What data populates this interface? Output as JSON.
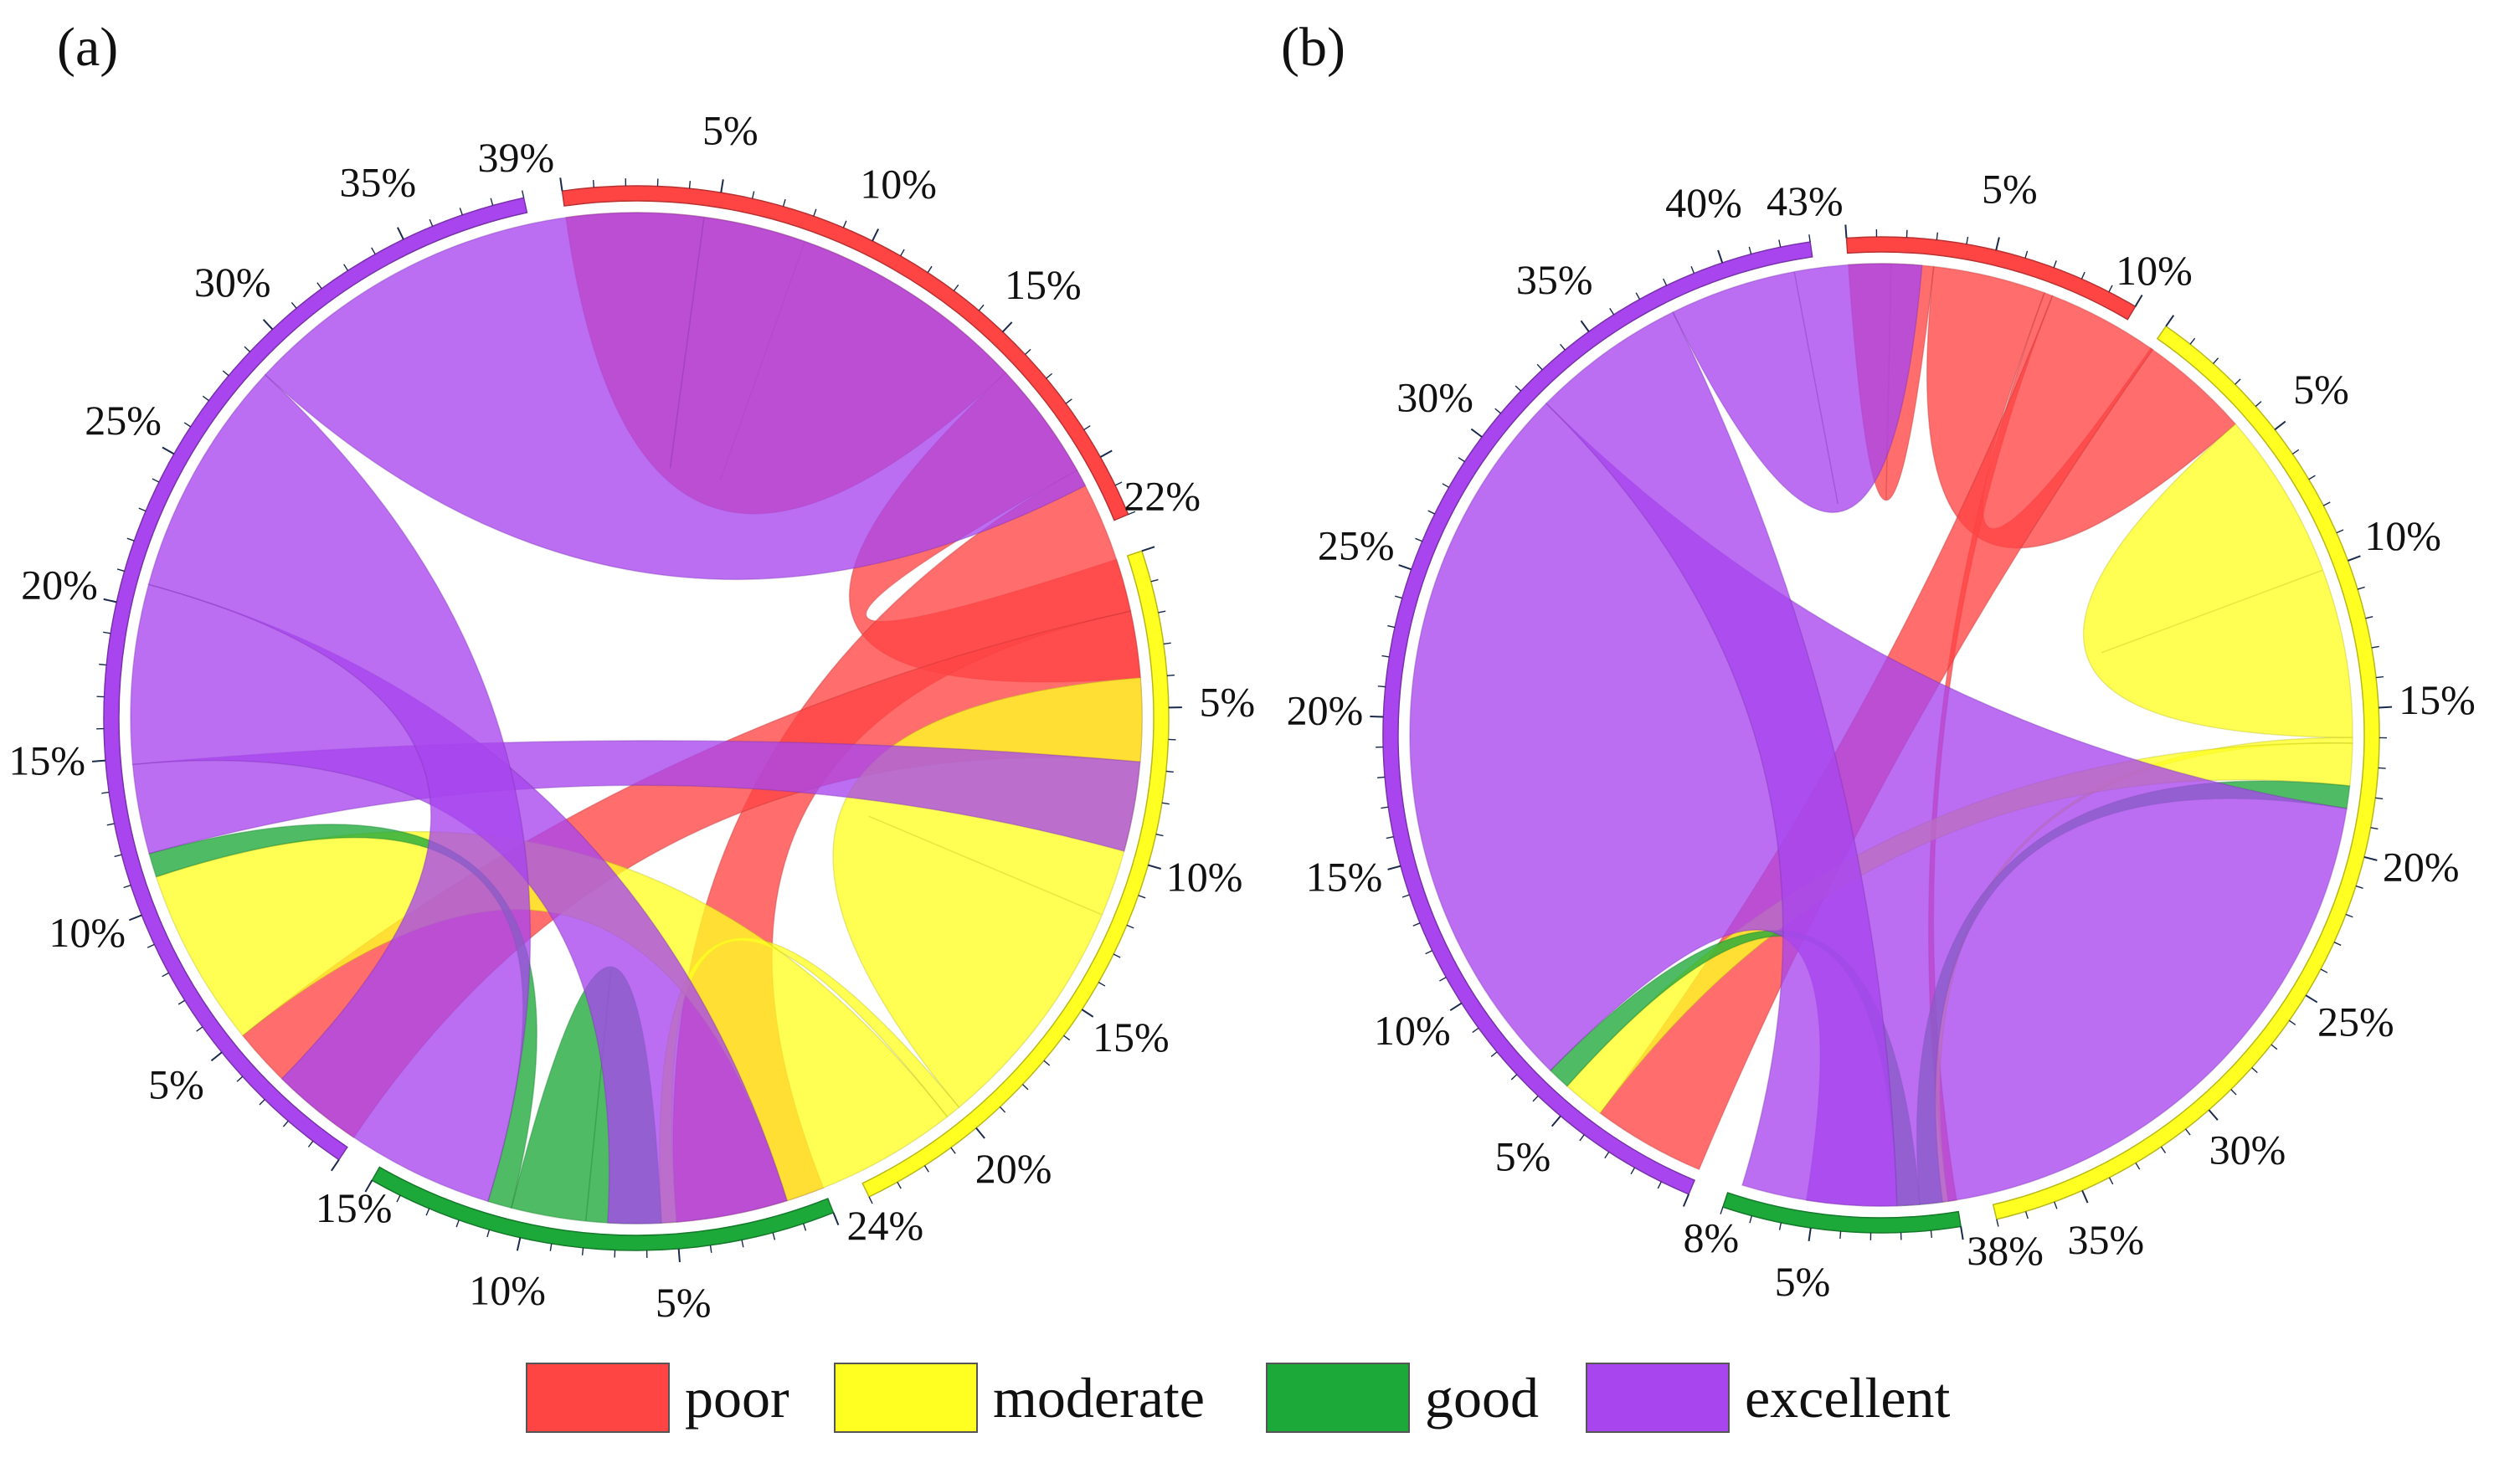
{
  "colors": {
    "poor": "#ff4444",
    "moderate": "#ffff22",
    "good": "#1da83a",
    "excellent": "#a845ee"
  },
  "legend": [
    {
      "key": "poor",
      "label": "poor"
    },
    {
      "key": "moderate",
      "label": "moderate"
    },
    {
      "key": "good",
      "label": "good"
    },
    {
      "key": "excellent",
      "label": "excellent"
    }
  ],
  "chart_data": [
    {
      "type": "chord",
      "panel_label": "(a)",
      "segments": [
        {
          "name": "poor",
          "total_pct": 22,
          "tick_labels": [
            "5%",
            "10%",
            "15%",
            "22%"
          ]
        },
        {
          "name": "moderate",
          "total_pct": 24,
          "tick_labels": [
            "5%",
            "10%",
            "15%",
            "20%",
            "24%"
          ]
        },
        {
          "name": "good",
          "total_pct": 15,
          "tick_labels": [
            "5%",
            "10%",
            "15%"
          ]
        },
        {
          "name": "excellent",
          "total_pct": 39,
          "tick_labels": [
            "5%",
            "10%",
            "15%",
            "20%",
            "25%",
            "30%",
            "35%",
            "39%"
          ]
        }
      ],
      "flows": [
        {
          "from": "poor",
          "to": "poor",
          "value": 8
        },
        {
          "from": "poor",
          "to": "moderate",
          "value": 4
        },
        {
          "from": "poor",
          "to": "good",
          "value": 5
        },
        {
          "from": "poor",
          "to": "excellent",
          "value": 5
        },
        {
          "from": "moderate",
          "to": "moderate",
          "value": 8
        },
        {
          "from": "moderate",
          "to": "good",
          "value": 0.5
        },
        {
          "from": "moderate",
          "to": "excellent",
          "value": 6
        },
        {
          "from": "good",
          "to": "good",
          "value": 2.5
        },
        {
          "from": "good",
          "to": "excellent",
          "value": 0.8
        },
        {
          "from": "excellent",
          "to": "poor",
          "value": 3
        },
        {
          "from": "excellent",
          "to": "moderate",
          "value": 6
        },
        {
          "from": "excellent",
          "to": "good",
          "value": 8
        },
        {
          "from": "excellent",
          "to": "excellent",
          "value": 16
        }
      ]
    },
    {
      "type": "chord",
      "panel_label": "(b)",
      "segments": [
        {
          "name": "poor",
          "total_pct": 10,
          "tick_labels": [
            "5%",
            "10%"
          ]
        },
        {
          "name": "moderate",
          "total_pct": 38,
          "tick_labels": [
            "5%",
            "10%",
            "15%",
            "20%",
            "25%",
            "30%",
            "35%",
            "38%"
          ]
        },
        {
          "name": "good",
          "total_pct": 8,
          "tick_labels": [
            "5%",
            "8%"
          ]
        },
        {
          "name": "excellent",
          "total_pct": 43,
          "tick_labels": [
            "5%",
            "10%",
            "15%",
            "20%",
            "25%",
            "30%",
            "35%",
            "40%",
            "43%"
          ]
        }
      ],
      "flows": [
        {
          "from": "poor",
          "to": "poor",
          "value": 1.5
        },
        {
          "from": "poor",
          "to": "moderate",
          "value": 4
        },
        {
          "from": "poor",
          "to": "good",
          "value": 0.3
        },
        {
          "from": "poor",
          "to": "excellent",
          "value": 4
        },
        {
          "from": "moderate",
          "to": "moderate",
          "value": 6
        },
        {
          "from": "moderate",
          "to": "good",
          "value": 0.2
        },
        {
          "from": "moderate",
          "to": "excellent",
          "value": 1.5
        },
        {
          "from": "good",
          "to": "moderate",
          "value": 0.8
        },
        {
          "from": "good",
          "to": "excellent",
          "value": 0.8
        },
        {
          "from": "excellent",
          "to": "moderate",
          "value": 26
        },
        {
          "from": "excellent",
          "to": "good",
          "value": 5.5
        },
        {
          "from": "excellent",
          "to": "excellent",
          "value": 4.5
        }
      ]
    }
  ]
}
